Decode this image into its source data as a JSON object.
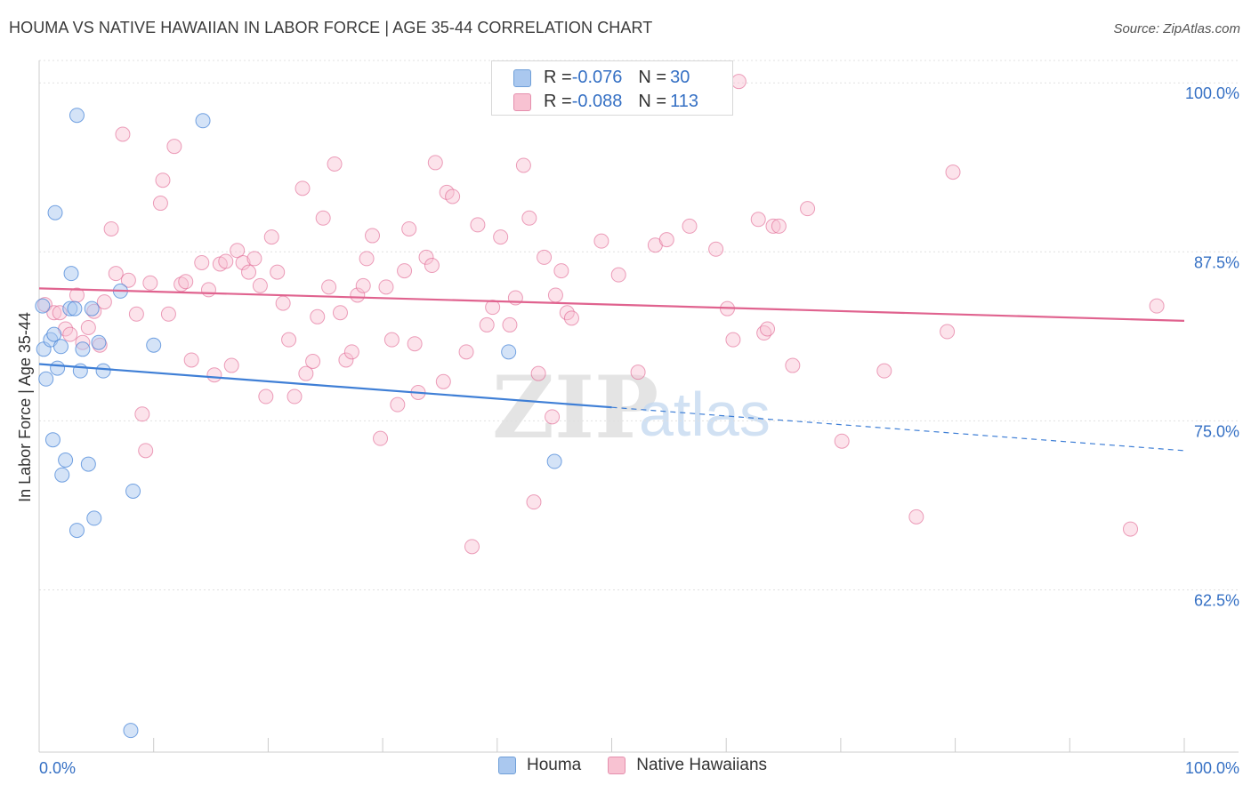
{
  "title": "HOUMA VS NATIVE HAWAIIAN IN LABOR FORCE | AGE 35-44 CORRELATION CHART",
  "source": "Source: ZipAtlas.com",
  "legend_top": {
    "rows": [
      {
        "r_label": "R = ",
        "r_value": "-0.076",
        "n_label": "N = ",
        "n_value": "30"
      },
      {
        "r_label": "R = ",
        "r_value": "-0.088",
        "n_label": "N = ",
        "n_value": "113"
      }
    ]
  },
  "legend_bottom": {
    "series_a": "Houma",
    "series_b": "Native Hawaiians"
  },
  "colors": {
    "blue": "#3f7fd6",
    "blue_fill": "#aac8ef",
    "pink": "#e0638f",
    "pink_fill": "#f8c2d2",
    "axis_label": "#3570c4",
    "grid": "#e0e0e0"
  },
  "watermark": {
    "zip": "ZIP",
    "atlas": "atlas"
  },
  "chart_data": {
    "type": "scatter",
    "xlabel": "",
    "ylabel": "In Labor Force | Age 35-44",
    "xlim": [
      0,
      100
    ],
    "ylim": [
      50.5,
      101
    ],
    "x_tick_labels": [
      "0.0%",
      "100.0%"
    ],
    "y_ticks": [
      62.5,
      75.0,
      87.5,
      100.0
    ],
    "y_tick_labels": [
      "62.5%",
      "75.0%",
      "87.5%",
      "100.0%"
    ],
    "grid": true,
    "legend": "top-center",
    "series": [
      {
        "name": "Houma",
        "color": "#3f7fd6",
        "trend": {
          "x0": 0,
          "y0": 79.2,
          "x1": 50,
          "y1": 76.0,
          "dash_x1": 100,
          "dash_y1": 72.8
        },
        "points": [
          [
            0.3,
            83.5
          ],
          [
            0.4,
            80.3
          ],
          [
            0.6,
            78.1
          ],
          [
            1.0,
            81.0
          ],
          [
            1.2,
            73.6
          ],
          [
            1.3,
            81.4
          ],
          [
            1.4,
            90.4
          ],
          [
            1.6,
            78.9
          ],
          [
            1.9,
            80.5
          ],
          [
            2.0,
            71.0
          ],
          [
            2.3,
            72.1
          ],
          [
            2.7,
            83.3
          ],
          [
            2.8,
            85.9
          ],
          [
            3.1,
            83.3
          ],
          [
            3.3,
            66.9
          ],
          [
            3.3,
            97.6
          ],
          [
            3.6,
            78.7
          ],
          [
            3.8,
            80.3
          ],
          [
            4.3,
            71.8
          ],
          [
            4.6,
            83.3
          ],
          [
            4.8,
            67.8
          ],
          [
            5.2,
            80.8
          ],
          [
            5.6,
            78.7
          ],
          [
            7.1,
            84.6
          ],
          [
            8.0,
            52.1
          ],
          [
            8.2,
            69.8
          ],
          [
            10.0,
            80.6
          ],
          [
            14.3,
            97.2
          ],
          [
            41.0,
            80.1
          ],
          [
            45.0,
            72.0
          ]
        ]
      },
      {
        "name": "Native Hawaiians",
        "color": "#e0638f",
        "trend": {
          "x0": 0,
          "y0": 84.8,
          "x1": 100,
          "y1": 82.4
        },
        "points": [
          [
            0.5,
            83.6
          ],
          [
            1.3,
            83.0
          ],
          [
            1.8,
            83.0
          ],
          [
            2.3,
            81.8
          ],
          [
            2.7,
            81.4
          ],
          [
            3.3,
            84.3
          ],
          [
            3.8,
            80.8
          ],
          [
            4.3,
            81.9
          ],
          [
            4.8,
            83.1
          ],
          [
            5.3,
            80.6
          ],
          [
            5.7,
            83.8
          ],
          [
            6.3,
            89.2
          ],
          [
            6.7,
            85.9
          ],
          [
            7.3,
            96.2
          ],
          [
            7.8,
            85.4
          ],
          [
            8.5,
            82.9
          ],
          [
            9.0,
            75.5
          ],
          [
            9.3,
            72.8
          ],
          [
            9.7,
            85.2
          ],
          [
            10.6,
            91.1
          ],
          [
            10.8,
            92.8
          ],
          [
            11.3,
            82.9
          ],
          [
            11.8,
            95.3
          ],
          [
            12.4,
            85.1
          ],
          [
            12.8,
            85.3
          ],
          [
            13.3,
            79.5
          ],
          [
            14.2,
            86.7
          ],
          [
            14.8,
            84.7
          ],
          [
            15.3,
            78.4
          ],
          [
            15.8,
            86.6
          ],
          [
            16.3,
            86.8
          ],
          [
            16.8,
            79.1
          ],
          [
            17.3,
            87.6
          ],
          [
            17.8,
            86.7
          ],
          [
            18.3,
            86.0
          ],
          [
            18.8,
            87.0
          ],
          [
            19.3,
            85.0
          ],
          [
            19.8,
            76.8
          ],
          [
            20.3,
            88.6
          ],
          [
            20.8,
            86.0
          ],
          [
            21.3,
            83.7
          ],
          [
            21.8,
            81.0
          ],
          [
            22.3,
            76.8
          ],
          [
            23.0,
            92.2
          ],
          [
            23.3,
            78.5
          ],
          [
            23.9,
            79.4
          ],
          [
            24.3,
            82.7
          ],
          [
            24.8,
            90.0
          ],
          [
            25.3,
            84.9
          ],
          [
            25.8,
            94.0
          ],
          [
            26.3,
            83.0
          ],
          [
            26.8,
            79.5
          ],
          [
            27.3,
            80.1
          ],
          [
            27.8,
            84.3
          ],
          [
            28.3,
            85.0
          ],
          [
            28.6,
            87.0
          ],
          [
            29.1,
            88.7
          ],
          [
            29.8,
            73.7
          ],
          [
            30.3,
            84.9
          ],
          [
            30.8,
            81.0
          ],
          [
            31.3,
            76.2
          ],
          [
            31.9,
            86.1
          ],
          [
            32.3,
            89.2
          ],
          [
            32.8,
            80.7
          ],
          [
            33.1,
            77.1
          ],
          [
            33.8,
            87.1
          ],
          [
            34.3,
            86.5
          ],
          [
            34.6,
            94.1
          ],
          [
            35.3,
            77.9
          ],
          [
            35.6,
            91.9
          ],
          [
            36.1,
            91.6
          ],
          [
            37.3,
            80.1
          ],
          [
            37.8,
            65.7
          ],
          [
            38.3,
            89.5
          ],
          [
            39.1,
            82.1
          ],
          [
            39.6,
            83.4
          ],
          [
            40.3,
            88.6
          ],
          [
            41.1,
            82.1
          ],
          [
            41.6,
            84.1
          ],
          [
            42.3,
            93.9
          ],
          [
            42.8,
            90.0
          ],
          [
            43.2,
            69.0
          ],
          [
            43.6,
            78.5
          ],
          [
            44.1,
            87.1
          ],
          [
            44.8,
            75.3
          ],
          [
            45.1,
            84.3
          ],
          [
            45.6,
            86.1
          ],
          [
            46.1,
            83.0
          ],
          [
            46.5,
            82.6
          ],
          [
            49.1,
            88.3
          ],
          [
            50.6,
            85.8
          ],
          [
            52.3,
            78.6
          ],
          [
            53.8,
            88.0
          ],
          [
            54.8,
            88.4
          ],
          [
            56.8,
            89.4
          ],
          [
            59.1,
            87.7
          ],
          [
            60.1,
            83.3
          ],
          [
            60.6,
            81.0
          ],
          [
            61.1,
            100.1
          ],
          [
            62.8,
            89.9
          ],
          [
            63.3,
            81.5
          ],
          [
            63.6,
            81.8
          ],
          [
            64.1,
            89.4
          ],
          [
            64.6,
            89.4
          ],
          [
            65.8,
            79.1
          ],
          [
            67.1,
            90.7
          ],
          [
            70.1,
            73.5
          ],
          [
            73.8,
            78.7
          ],
          [
            76.6,
            67.9
          ],
          [
            79.3,
            81.6
          ],
          [
            79.8,
            93.4
          ],
          [
            95.3,
            67.0
          ],
          [
            97.6,
            83.5
          ]
        ]
      }
    ]
  }
}
